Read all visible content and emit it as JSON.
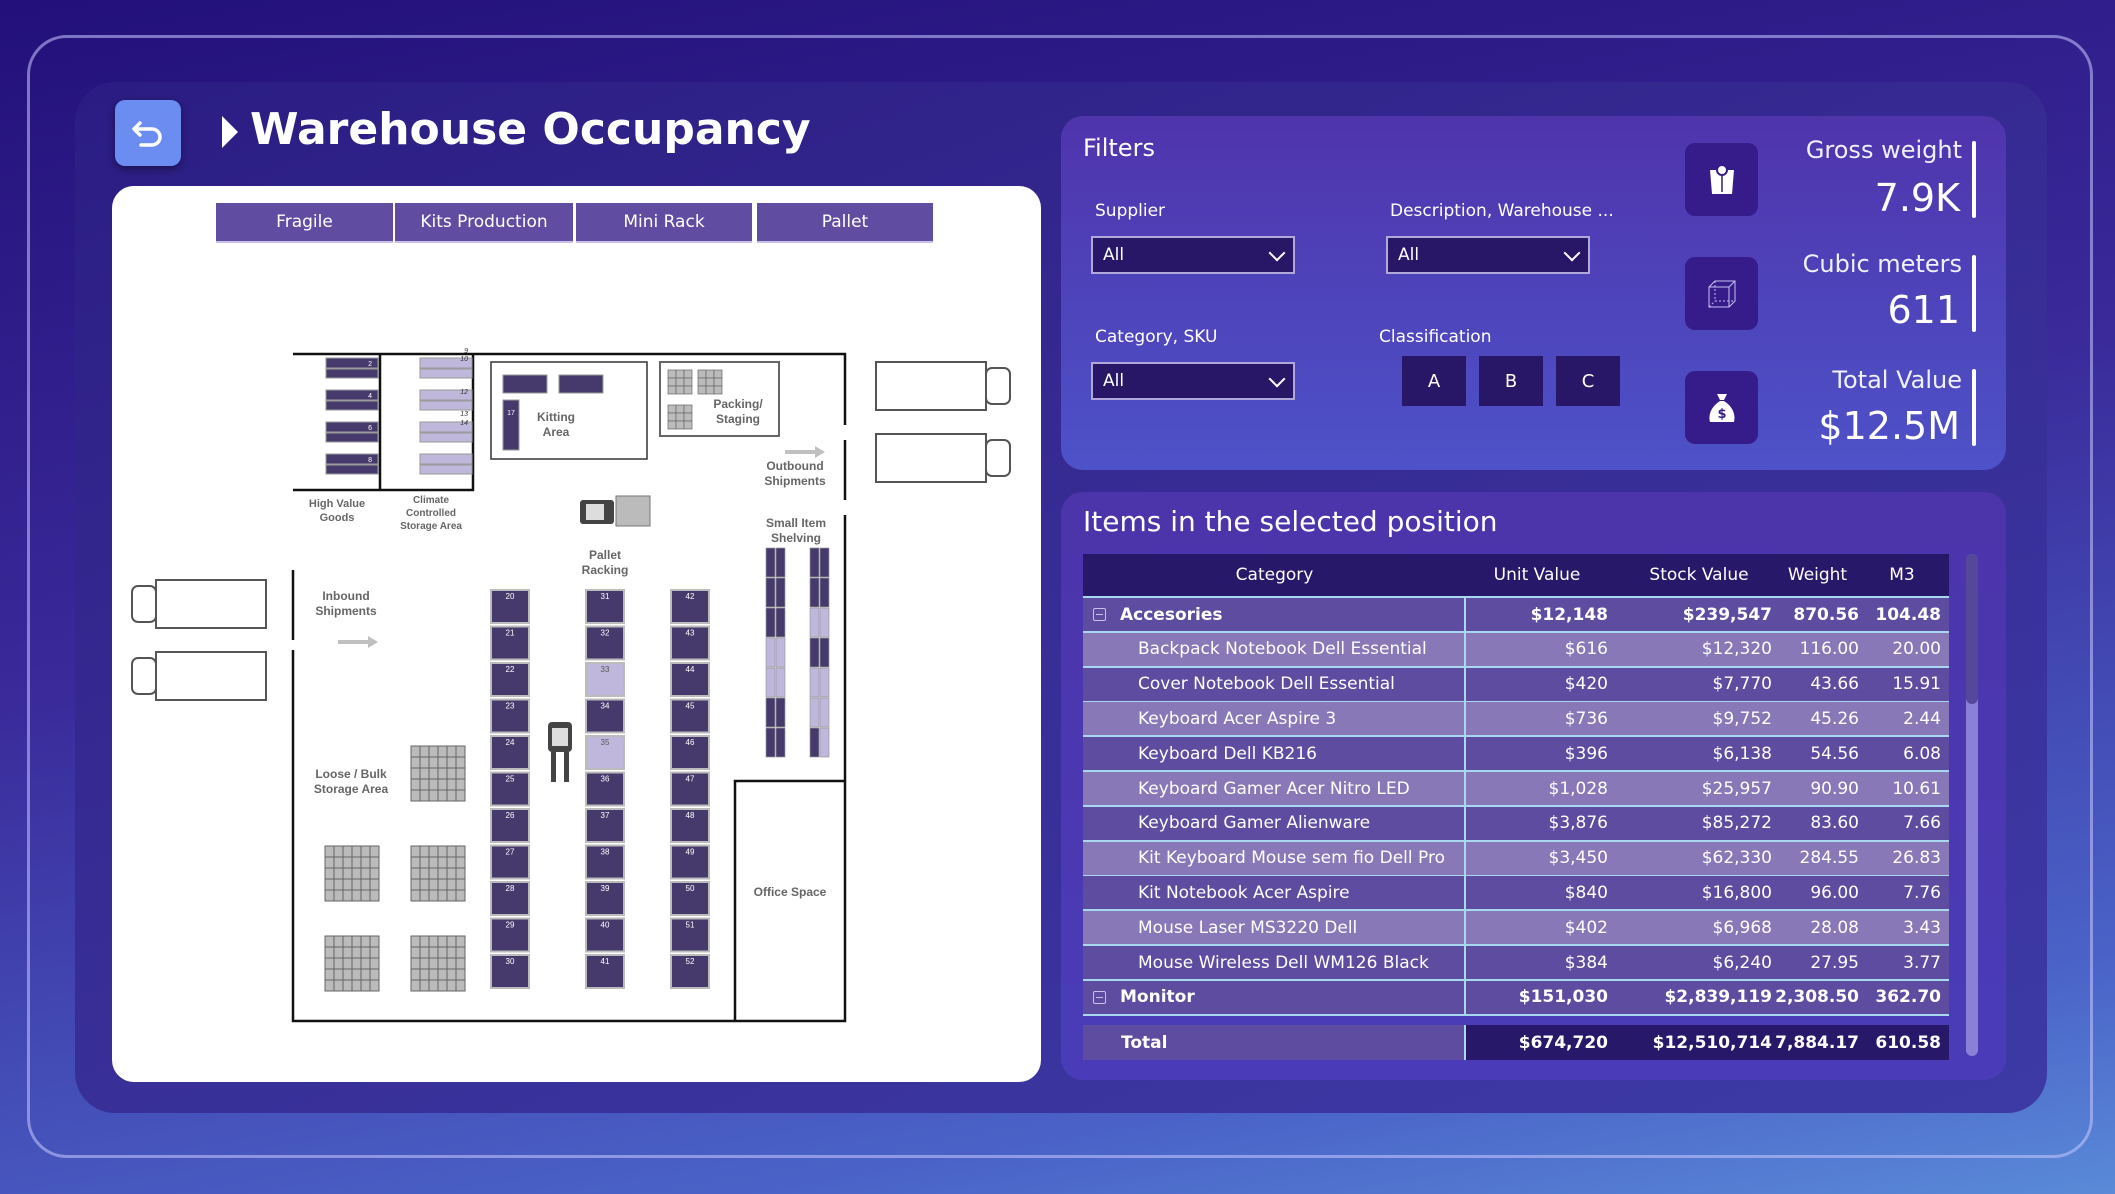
{
  "header": {
    "title": "Warehouse Occupancy",
    "back_icon": "undo-arrow-icon"
  },
  "tabs": [
    "Fragile",
    "Kits Production",
    "Mini Rack",
    "Pallet"
  ],
  "floorplan": {
    "labels": {
      "high_value": [
        "High Value",
        "Goods"
      ],
      "climate": [
        "Climate",
        "Controlled",
        "Storage Area"
      ],
      "kitting": [
        "Kitting",
        "Area"
      ],
      "packing": [
        "Packing/",
        "Staging"
      ],
      "outbound": [
        "Outbound",
        "Shipments"
      ],
      "small_item": [
        "Small Item",
        "Shelving"
      ],
      "pallet_racking": [
        "Pallet",
        "Racking"
      ],
      "inbound": [
        "Inbound",
        "Shipments"
      ],
      "loose_bulk": [
        "Loose / Bulk",
        "Storage Area"
      ],
      "office": "Office Space"
    },
    "high_value_racks": [
      "2",
      "4",
      "6",
      "8"
    ],
    "climate_racks": [
      "9",
      "10",
      "12",
      "13",
      "14"
    ],
    "kitting_rack": "17",
    "rack_columns": [
      {
        "numbers": [
          "20",
          "21",
          "22",
          "23",
          "24",
          "25",
          "26",
          "27",
          "28",
          "29",
          "30"
        ],
        "empty": []
      },
      {
        "numbers": [
          "31",
          "32",
          "33",
          "34",
          "35",
          "36",
          "37",
          "38",
          "39",
          "40",
          "41"
        ],
        "empty": [
          "33",
          "35"
        ]
      },
      {
        "numbers": [
          "42",
          "43",
          "44",
          "45",
          "46",
          "47",
          "48",
          "49",
          "50",
          "51",
          "52"
        ],
        "empty": []
      }
    ],
    "colors": {
      "occupied": "#463a6c",
      "empty": "#c0b8dc"
    }
  },
  "filters": {
    "title": "Filters",
    "supplier": {
      "label": "Supplier",
      "value": "All"
    },
    "description": {
      "label": "Description, Warehouse ...",
      "value": "All"
    },
    "category": {
      "label": "Category, SKU",
      "value": "All"
    },
    "classification": {
      "label": "Classification",
      "options": [
        "A",
        "B",
        "C"
      ]
    }
  },
  "kpis": [
    {
      "label": "Gross weight",
      "value": "7.9K",
      "icon": "scale-icon"
    },
    {
      "label": "Cubic meters",
      "value": "611",
      "icon": "cube-icon"
    },
    {
      "label": "Total Value",
      "value": "$12.5M",
      "icon": "money-bag-icon"
    }
  ],
  "items": {
    "title": "Items in the selected position",
    "columns": [
      "Category",
      "Unit Value",
      "Stock Value",
      "Weight",
      "M3"
    ],
    "rows": [
      {
        "type": "group",
        "cells": [
          "Accesories",
          "$12,148",
          "$239,547",
          "870.56",
          "104.48"
        ]
      },
      {
        "type": "item",
        "cells": [
          "Backpack Notebook Dell Essential",
          "$616",
          "$12,320",
          "116.00",
          "20.00"
        ]
      },
      {
        "type": "item",
        "cells": [
          "Cover Notebook Dell Essential",
          "$420",
          "$7,770",
          "43.66",
          "15.91"
        ]
      },
      {
        "type": "item",
        "cells": [
          "Keyboard Acer Aspire 3",
          "$736",
          "$9,752",
          "45.26",
          "2.44"
        ]
      },
      {
        "type": "item",
        "cells": [
          "Keyboard Dell KB216",
          "$396",
          "$6,138",
          "54.56",
          "6.08"
        ]
      },
      {
        "type": "item",
        "cells": [
          "Keyboard Gamer Acer Nitro LED",
          "$1,028",
          "$25,957",
          "90.90",
          "10.61"
        ]
      },
      {
        "type": "item",
        "cells": [
          "Keyboard Gamer Alienware",
          "$3,876",
          "$85,272",
          "83.60",
          "7.66"
        ]
      },
      {
        "type": "item",
        "cells": [
          "Kit Keyboard Mouse sem fio Dell Pro",
          "$3,450",
          "$62,330",
          "284.55",
          "26.83"
        ]
      },
      {
        "type": "item",
        "cells": [
          "Kit Notebook Acer Aspire",
          "$840",
          "$16,800",
          "96.00",
          "7.76"
        ]
      },
      {
        "type": "item",
        "cells": [
          "Mouse Laser MS3220 Dell",
          "$402",
          "$6,968",
          "28.08",
          "3.43"
        ]
      },
      {
        "type": "item",
        "cells": [
          "Mouse Wireless Dell WM126 Black",
          "$384",
          "$6,240",
          "27.95",
          "3.77"
        ]
      },
      {
        "type": "group",
        "cells": [
          "Monitor",
          "$151,030",
          "$2,839,119",
          "2,308.50",
          "362.70"
        ]
      }
    ],
    "total": [
      "Total",
      "$674,720",
      "$12,510,714",
      "7,884.17",
      "610.58"
    ]
  }
}
